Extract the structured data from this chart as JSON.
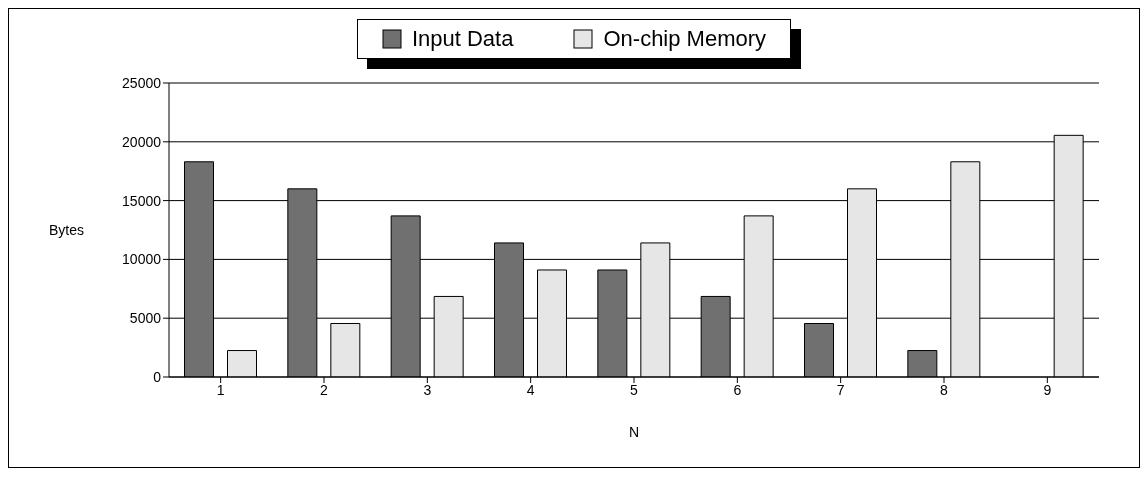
{
  "chart_data": {
    "type": "bar",
    "xlabel": "N",
    "ylabel": "Bytes",
    "categories": [
      "1",
      "2",
      "3",
      "4",
      "5",
      "6",
      "7",
      "8",
      "9"
    ],
    "series": [
      {
        "name": "Input Data",
        "color": "#707070",
        "values": [
          18300,
          16000,
          13700,
          11400,
          9100,
          6850,
          4550,
          2250,
          0
        ]
      },
      {
        "name": "On-chip Memory",
        "color": "#e6e6e6",
        "values": [
          2250,
          4550,
          6850,
          9100,
          11400,
          13700,
          16000,
          18300,
          20550
        ]
      }
    ],
    "ylim": [
      0,
      25000
    ],
    "yticks": [
      0,
      5000,
      10000,
      15000,
      20000,
      25000
    ],
    "grid": "y",
    "legend": "top"
  }
}
